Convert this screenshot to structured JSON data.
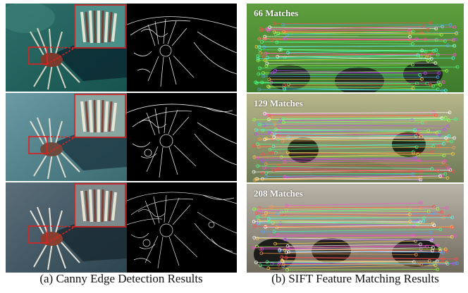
{
  "captions": {
    "left": "(a) Canny Edge Detection Results",
    "right": "(b) SIFT Feature Matching Results"
  },
  "matches": [
    {
      "label": "66 Matches",
      "count": 66
    },
    {
      "label": "129 Matches",
      "count": 129
    },
    {
      "label": "208 Matches",
      "count": 208
    }
  ],
  "colors": {
    "zoom_box": "#e02020",
    "edge_background": "#000000",
    "edge_lines": "#ffffff"
  }
}
